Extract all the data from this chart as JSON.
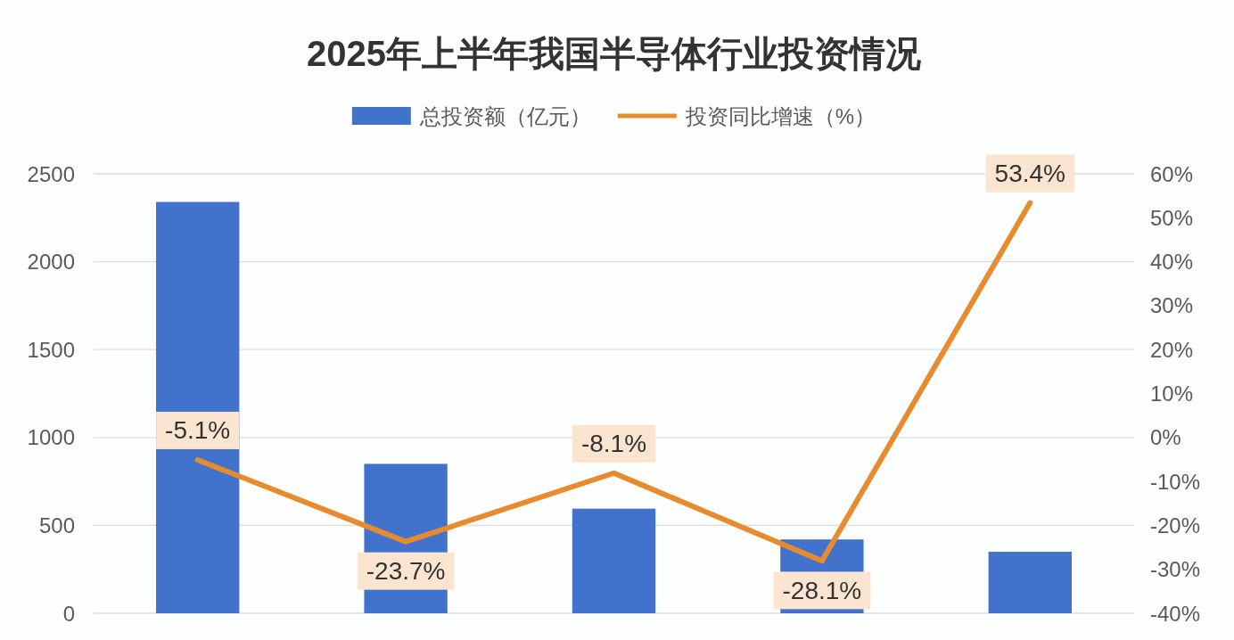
{
  "chart_data": {
    "type": "bar",
    "title": "2025年上半年我国半导体行业投资情况",
    "categories": [
      null,
      null,
      null,
      null,
      null
    ],
    "series": [
      {
        "name": "总投资额（亿元）",
        "color": "#4273cc",
        "values": [
          2340,
          850,
          595,
          420,
          350
        ]
      },
      {
        "name": "投资同比增速（%）",
        "type": "line",
        "axis": "y2",
        "color": "#e88b2e",
        "values": [
          -5.1,
          -23.7,
          -8.1,
          -28.1,
          53.4
        ],
        "value_labels": [
          "-5.1%",
          "-23.7%",
          "-8.1%",
          "-28.1%",
          "53.4%"
        ]
      }
    ],
    "ylim": [
      0,
      2500
    ],
    "yticks": [
      0,
      500,
      1000,
      1500,
      2000,
      2500
    ],
    "y2lim": [
      -40,
      60
    ],
    "y2ticks": [
      {
        "value": -40,
        "label": "-40%"
      },
      {
        "value": -30,
        "label": "-30%"
      },
      {
        "value": -20,
        "label": "-20%"
      },
      {
        "value": -10,
        "label": "-10%"
      },
      {
        "value": 0,
        "label": "0%"
      },
      {
        "value": 10,
        "label": "10%"
      },
      {
        "value": 20,
        "label": "20%"
      },
      {
        "value": 30,
        "label": "30%"
      },
      {
        "value": 40,
        "label": "40%"
      },
      {
        "value": 50,
        "label": "50%"
      },
      {
        "value": 60,
        "label": "60%"
      }
    ],
    "grid": "y",
    "legend": "top"
  }
}
